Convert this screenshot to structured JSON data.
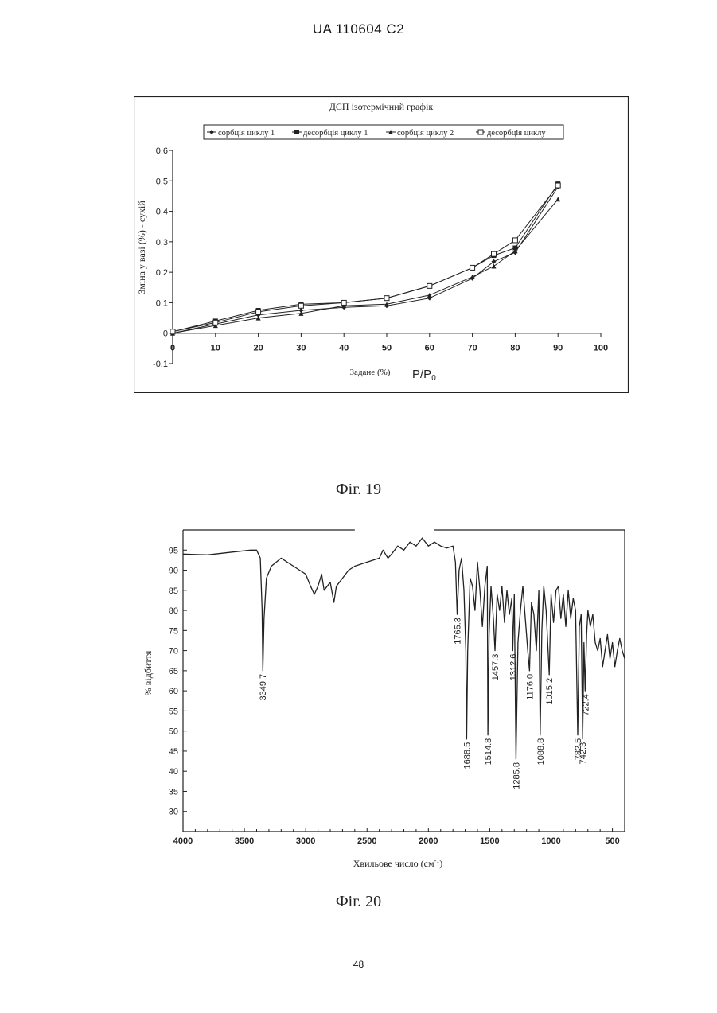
{
  "page": {
    "header": "UA   110604   C2",
    "page_number": "48"
  },
  "figures": {
    "fig19_caption": "Фіг. 19",
    "fig20_caption": "Фіг. 20"
  },
  "chart_data": [
    {
      "type": "line",
      "title": "ДСП ізотермічний графік",
      "xlabel": "Задане (%)",
      "xlabel_extra": "P/P0",
      "ylabel": "Зміна у вазі (%) - сухій",
      "xlim": [
        0,
        100
      ],
      "ylim": [
        -0.1,
        0.6
      ],
      "x_ticks": [
        0,
        10,
        20,
        30,
        40,
        50,
        60,
        70,
        80,
        90,
        100
      ],
      "y_ticks": [
        -0.1,
        0,
        0.1,
        0.2,
        0.3,
        0.4,
        0.5,
        0.6
      ],
      "legend_position": "top",
      "series": [
        {
          "name": "сорбція циклу 1",
          "marker": "diamond",
          "x": [
            0,
            10,
            20,
            30,
            40,
            50,
            60,
            70,
            75,
            80,
            90
          ],
          "y": [
            0.0,
            0.03,
            0.06,
            0.075,
            0.085,
            0.09,
            0.115,
            0.18,
            0.235,
            0.265,
            0.48
          ]
        },
        {
          "name": "десорбція циклу 1",
          "marker": "square",
          "x": [
            0,
            10,
            20,
            30,
            40,
            50,
            60,
            70,
            75,
            80,
            90
          ],
          "y": [
            0.005,
            0.04,
            0.075,
            0.095,
            0.1,
            0.115,
            0.155,
            0.215,
            0.255,
            0.28,
            0.49
          ]
        },
        {
          "name": "сорбція циклу 2",
          "marker": "triangle",
          "x": [
            0,
            10,
            20,
            30,
            40,
            50,
            60,
            70,
            75,
            80,
            90
          ],
          "y": [
            0.0,
            0.025,
            0.05,
            0.065,
            0.09,
            0.095,
            0.125,
            0.185,
            0.22,
            0.27,
            0.44
          ]
        },
        {
          "name": "десорбція циклу",
          "marker": "open-square",
          "x": [
            0,
            10,
            20,
            30,
            40,
            50,
            60,
            70,
            75,
            80,
            90
          ],
          "y": [
            0.005,
            0.035,
            0.07,
            0.09,
            0.1,
            0.115,
            0.155,
            0.215,
            0.26,
            0.305,
            0.485
          ]
        }
      ]
    },
    {
      "type": "line",
      "title": "",
      "xlabel": "Хвильове число (см",
      "xlabel_sup": "-1",
      "xlabel_end": ")",
      "ylabel": "% відбиття",
      "xlim": [
        4000,
        400
      ],
      "ylim": [
        25,
        100
      ],
      "x_ticks": [
        4000,
        3500,
        3000,
        2500,
        2000,
        1500,
        1000,
        500
      ],
      "y_ticks": [
        30,
        35,
        40,
        45,
        50,
        55,
        60,
        65,
        70,
        75,
        80,
        85,
        90,
        95
      ],
      "peak_labels": [
        {
          "label": "3349.7",
          "x": 3349.7,
          "y": 65
        },
        {
          "label": "1765.3",
          "x": 1765.3,
          "y": 79
        },
        {
          "label": "1688.5",
          "x": 1688.5,
          "y": 48
        },
        {
          "label": "1514.8",
          "x": 1514.8,
          "y": 49
        },
        {
          "label": "1457.3",
          "x": 1457.3,
          "y": 70
        },
        {
          "label": "1312.6",
          "x": 1312.6,
          "y": 70
        },
        {
          "label": "1285.8",
          "x": 1285.8,
          "y": 43
        },
        {
          "label": "1176.0",
          "x": 1176.0,
          "y": 65
        },
        {
          "label": "1088.8",
          "x": 1088.8,
          "y": 49
        },
        {
          "label": "1015.2",
          "x": 1015.2,
          "y": 64
        },
        {
          "label": "782.5",
          "x": 782.5,
          "y": 49
        },
        {
          "label": "742.3",
          "x": 742.3,
          "y": 48
        },
        {
          "label": "722.4",
          "x": 722.4,
          "y": 60
        }
      ],
      "series": [
        {
          "x": [
            4000,
            3800,
            3600,
            3450,
            3400,
            3370,
            3355,
            3349.7,
            3340,
            3320,
            3280,
            3200,
            3100,
            3000,
            2960,
            2930,
            2900,
            2870,
            2850,
            2800,
            2770,
            2750,
            2700,
            2650,
            2600,
            2500,
            2400,
            2370,
            2330,
            2300,
            2250,
            2200,
            2150,
            2100,
            2050,
            2000,
            1950,
            1900,
            1850,
            1800,
            1780,
            1765.3,
            1750,
            1730,
            1710,
            1695,
            1688.5,
            1680,
            1660,
            1640,
            1620,
            1600,
            1580,
            1560,
            1540,
            1520,
            1514.8,
            1505,
            1490,
            1470,
            1457.3,
            1440,
            1420,
            1400,
            1380,
            1360,
            1340,
            1320,
            1312.6,
            1300,
            1285.8,
            1270,
            1250,
            1230,
            1210,
            1190,
            1176.0,
            1160,
            1140,
            1120,
            1100,
            1088.8,
            1075,
            1060,
            1040,
            1015.2,
            1000,
            980,
            960,
            940,
            920,
            900,
            880,
            860,
            840,
            820,
            800,
            782.5,
            770,
            755,
            742.3,
            732,
            722.4,
            710,
            700,
            680,
            660,
            640,
            620,
            600,
            580,
            560,
            540,
            520,
            500,
            480,
            460,
            440,
            420,
            400
          ],
          "y": [
            94,
            93.8,
            94.5,
            95,
            95,
            93,
            80,
            65,
            78,
            88,
            91,
            93,
            91,
            89,
            86,
            84,
            86,
            89,
            85,
            87,
            82,
            86,
            88,
            90,
            91,
            92,
            93,
            95,
            93,
            94,
            96,
            95,
            97,
            96,
            98,
            96,
            97,
            96,
            95.5,
            96,
            92,
            79,
            90,
            93,
            85,
            70,
            48,
            70,
            88,
            86,
            80,
            92,
            85,
            76,
            86,
            91,
            49,
            74,
            86,
            78,
            70,
            84,
            80,
            86,
            77,
            85,
            79,
            83,
            70,
            84,
            43,
            72,
            80,
            86,
            78,
            70,
            65,
            82,
            79,
            70,
            85,
            49,
            75,
            86,
            80,
            64,
            84,
            77,
            85,
            86,
            78,
            84,
            76,
            85,
            78,
            83,
            80,
            49,
            76,
            79,
            48,
            72,
            60,
            74,
            80,
            76,
            79,
            72,
            70,
            73,
            66,
            70,
            74,
            68,
            72,
            66,
            70,
            73,
            70,
            68
          ]
        }
      ]
    }
  ]
}
